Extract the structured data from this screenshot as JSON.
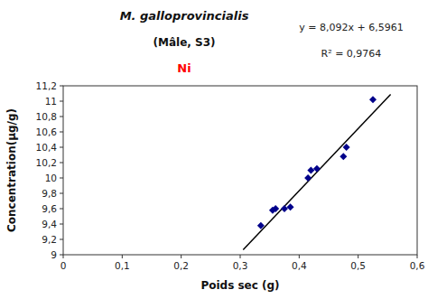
{
  "chart_data": {
    "type": "scatter",
    "title": "M. galloprovincialis",
    "subtitle": "(Mâle, S3)",
    "annotations": [
      {
        "text": "Ni",
        "color": "red"
      },
      {
        "text": "y = 8,092x + 6,5961"
      },
      {
        "text": "R² = 0,9764"
      }
    ],
    "x_label": "Poids sec (g)",
    "y_label": "Concentration(µg/g)",
    "series": [
      {
        "type": "scatter",
        "marker": "diamond",
        "color": "#00008B",
        "x": [
          0.335,
          0.355,
          0.36,
          0.375,
          0.385,
          0.415,
          0.42,
          0.43,
          0.475,
          0.48,
          0.525
        ],
        "values": [
          9.38,
          9.58,
          9.6,
          9.6,
          9.62,
          10.0,
          10.1,
          10.12,
          10.28,
          10.4,
          11.02
        ]
      },
      {
        "type": "line",
        "color": "black",
        "x": [
          0.305,
          0.555
        ],
        "values": [
          9.06416,
          11.08716
        ]
      }
    ],
    "xlim": [
      0,
      0.6
    ],
    "ylim": [
      9.0,
      11.2
    ],
    "xticks": [
      0,
      {
        "value": 0.1,
        "label": "0,1"
      },
      {
        "value": 0.2,
        "label": "0,2"
      },
      {
        "value": 0.3,
        "label": "0,3"
      },
      {
        "value": 0.4,
        "label": "0,4"
      },
      {
        "value": 0.5,
        "label": "0,5"
      },
      {
        "value": 0.6,
        "label": "0,6"
      }
    ],
    "yticks": [
      9,
      {
        "value": 9.2,
        "label": "9,2"
      },
      {
        "value": 9.4,
        "label": "9,4"
      },
      {
        "value": 9.6,
        "label": "9,6"
      },
      {
        "value": 9.8,
        "label": "9,8"
      },
      10,
      {
        "value": 10.2,
        "label": "10,2"
      },
      {
        "value": 10.4,
        "label": "10,4"
      },
      {
        "value": 10.6,
        "label": "10,6"
      },
      {
        "value": 10.8,
        "label": "10,8"
      },
      11,
      {
        "value": 11.2,
        "label": "11,2"
      }
    ],
    "grid": false
  }
}
